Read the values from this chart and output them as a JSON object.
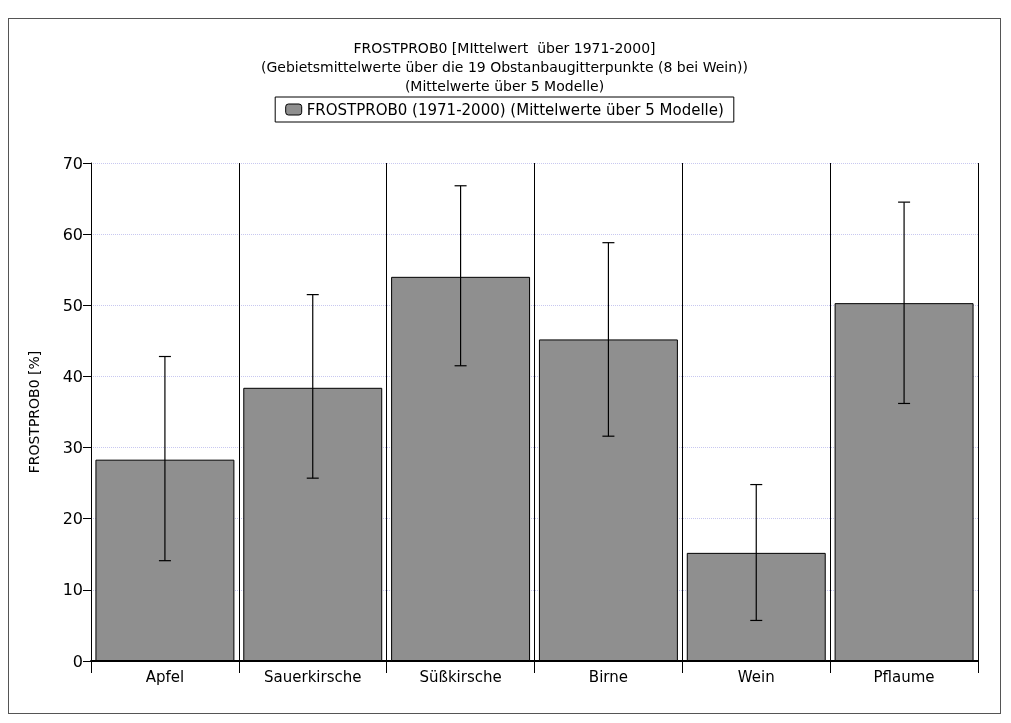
{
  "chart_data": {
    "type": "bar",
    "title": "FROSTPROB0 [MIttelwert  über 1971-2000]\n(Gebietsmittelwerte über die 19 Obstanbaugitterpunkte (8 bei Wein))\n(Mittelwerte über 5 Modelle)",
    "ylabel": "FROSTPROB0 [%]",
    "categories": [
      "Apfel",
      "Sauerkirsche",
      "Süßkirsche",
      "Birne",
      "Wein",
      "Pflaume"
    ],
    "series": [
      {
        "name": "FROSTPROB0 (1971-2000) (Mittelwerte über 5 Modelle)",
        "color": "#8f8f8f",
        "values": [
          28.3,
          38.4,
          54.0,
          45.2,
          15.2,
          50.3
        ],
        "errors": [
          [
            14.1,
            42.8
          ],
          [
            25.7,
            51.5
          ],
          [
            41.5,
            66.8
          ],
          [
            31.6,
            58.8
          ],
          [
            5.7,
            24.8
          ],
          [
            36.2,
            64.5
          ]
        ]
      }
    ],
    "ylim": [
      0,
      70
    ],
    "yticks": [
      0,
      10,
      20,
      30,
      40,
      50,
      60,
      70
    ],
    "grid": true,
    "legend": "top"
  }
}
